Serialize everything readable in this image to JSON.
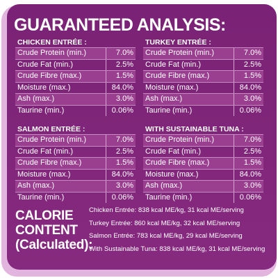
{
  "title": "GUARANTEED ANALYSIS:",
  "tables": [
    {
      "heading": "CHICKEN ENTRÉE :",
      "rows": [
        [
          "Crude Protein (min.)",
          "7.0%"
        ],
        [
          "Crude Fat (min.)",
          "2.5%"
        ],
        [
          "Crude Fibre (max.)",
          "1.5%"
        ],
        [
          "Moisture (max.)",
          "84.0%"
        ],
        [
          "Ash (max.)",
          "3.0%"
        ],
        [
          "Taurine (min.)",
          "0.06%"
        ]
      ]
    },
    {
      "heading": "TURKEY ENTRÉE :",
      "rows": [
        [
          "Crude Protein (min.)",
          "7.0%"
        ],
        [
          "Crude Fat (min.)",
          "2.5%"
        ],
        [
          "Crude Fibre (max.)",
          "1.5%"
        ],
        [
          "Moisture (max.)",
          "84.0%"
        ],
        [
          "Ash (max.)",
          "3.0%"
        ],
        [
          "Taurine (min.)",
          "0.06%"
        ]
      ]
    },
    {
      "heading": "SALMON ENTRÉE :",
      "rows": [
        [
          "Crude Protein (min.)",
          "7.0%"
        ],
        [
          "Crude Fat (min.)",
          "2.5%"
        ],
        [
          "Crude Fibre (max.)",
          "1.5%"
        ],
        [
          "Moisture (max.)",
          "84.0%"
        ],
        [
          "Ash (max.)",
          "3.0%"
        ],
        [
          "Taurine (min.)",
          "0.06%"
        ]
      ]
    },
    {
      "heading": "WITH SUSTAINABLE TUNA :",
      "rows": [
        [
          "Crude Protein (min.)",
          "7.0%"
        ],
        [
          "Crude Fat (min.)",
          "2.5%"
        ],
        [
          "Crude Fibre (max.)",
          "1.5%"
        ],
        [
          "Moisture (max.)",
          "84.0%"
        ],
        [
          "Ash (max.)",
          "3.0%"
        ],
        [
          "Taurine (min.)",
          "0.06%"
        ]
      ]
    }
  ],
  "calorie": {
    "heading": [
      "CALORIE",
      "CONTENT",
      "(Calculated):"
    ],
    "lines": [
      "Chicken Entrée: 838 kcal ME/kg, 31 kcal ME/serving",
      "Turkey Entrée: 860 kcal ME/kg, 32 kcal ME/serving",
      "Salmon Entrée: 783 kcal ME/kg, 29 kcal ME/serving",
      "With Sustainable Tuna: 838 kcal ME/kg, 31 kcal ME/serving"
    ]
  }
}
